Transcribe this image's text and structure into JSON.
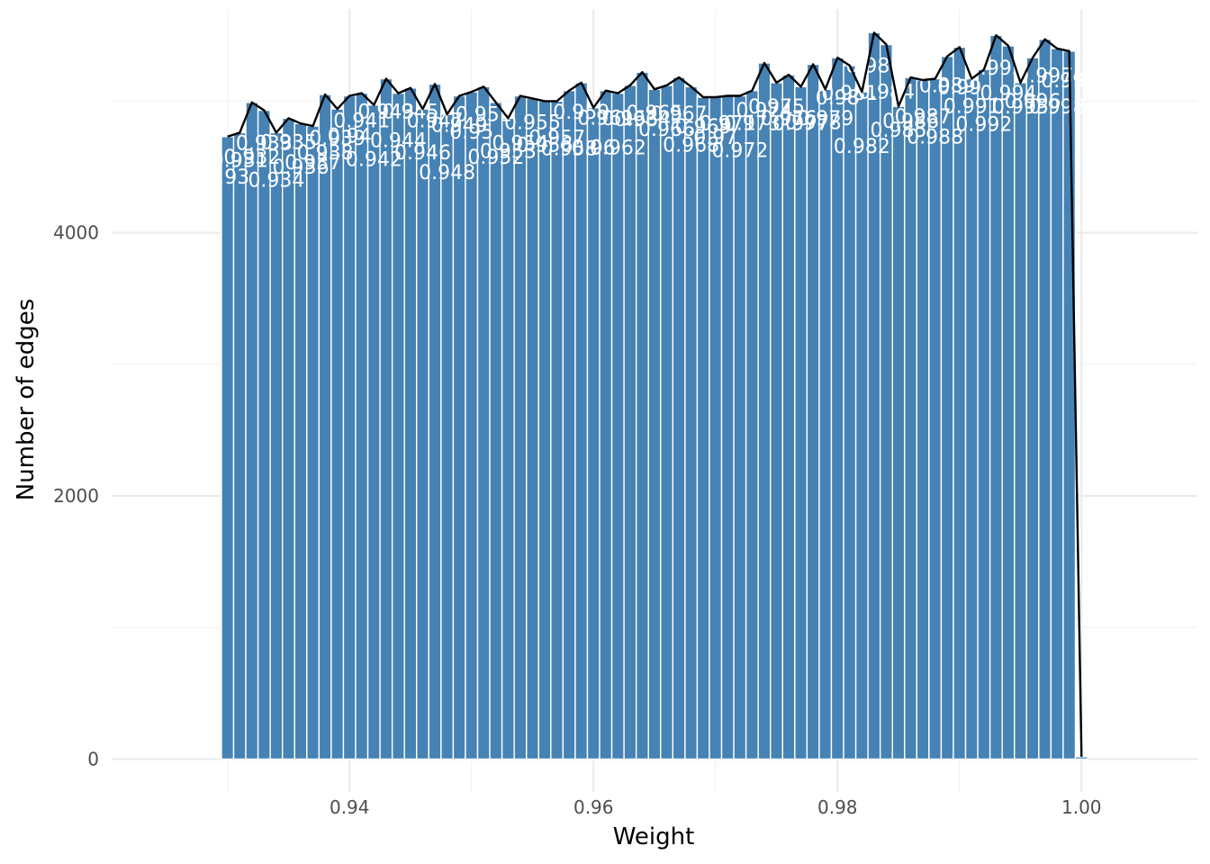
{
  "chart_data": {
    "type": "bar",
    "title": "",
    "xlabel": "Weight",
    "ylabel": "Number of edges",
    "xlim": [
      0.9205,
      1.0095
    ],
    "ylim": [
      -250,
      5700
    ],
    "x_ticks": [
      {
        "value": 0.94,
        "label": "0.94"
      },
      {
        "value": 0.96,
        "label": "0.96"
      },
      {
        "value": 0.98,
        "label": "0.98"
      },
      {
        "value": 1.0,
        "label": "1.00"
      }
    ],
    "y_ticks": [
      {
        "value": 0,
        "label": "0"
      },
      {
        "value": 2000,
        "label": "2000"
      },
      {
        "value": 4000,
        "label": "4000"
      }
    ],
    "grid": true,
    "bar_color": "#4682B4",
    "line_color": "#000000",
    "label_color": "#FFFFFF",
    "bins": [
      {
        "x": 0.93,
        "count": 4730,
        "label": "0.93"
      },
      {
        "x": 0.931,
        "count": 4760,
        "label": "0.931"
      },
      {
        "x": 0.932,
        "count": 4990,
        "label": "0.932"
      },
      {
        "x": 0.933,
        "count": 4930,
        "label": "0.933"
      },
      {
        "x": 0.934,
        "count": 4760,
        "label": "0.934"
      },
      {
        "x": 0.935,
        "count": 4870,
        "label": "0.935"
      },
      {
        "x": 0.936,
        "count": 4830,
        "label": "0.936"
      },
      {
        "x": 0.937,
        "count": 4810,
        "label": "0.937"
      },
      {
        "x": 0.938,
        "count": 5050,
        "label": "0.938"
      },
      {
        "x": 0.939,
        "count": 4940,
        "label": "0.939"
      },
      {
        "x": 0.94,
        "count": 5040,
        "label": "0.94"
      },
      {
        "x": 0.941,
        "count": 5060,
        "label": "0.941"
      },
      {
        "x": 0.942,
        "count": 4970,
        "label": "0.942"
      },
      {
        "x": 0.943,
        "count": 5170,
        "label": "0.943"
      },
      {
        "x": 0.944,
        "count": 5060,
        "label": "0.944"
      },
      {
        "x": 0.945,
        "count": 5100,
        "label": "0.945"
      },
      {
        "x": 0.946,
        "count": 4940,
        "label": "0.946"
      },
      {
        "x": 0.947,
        "count": 5130,
        "label": "0.947"
      },
      {
        "x": 0.948,
        "count": 4900,
        "label": "0.948"
      },
      {
        "x": 0.949,
        "count": 5040,
        "label": "0.949"
      },
      {
        "x": 0.95,
        "count": 5070,
        "label": "0.95"
      },
      {
        "x": 0.951,
        "count": 5110,
        "label": "0.951"
      },
      {
        "x": 0.952,
        "count": 4990,
        "label": "0.952"
      },
      {
        "x": 0.953,
        "count": 4870,
        "label": "0.953"
      },
      {
        "x": 0.954,
        "count": 5040,
        "label": "0.954"
      },
      {
        "x": 0.955,
        "count": 5020,
        "label": "0.955"
      },
      {
        "x": 0.956,
        "count": 5000,
        "label": "0.956"
      },
      {
        "x": 0.957,
        "count": 5000,
        "label": "0.957"
      },
      {
        "x": 0.958,
        "count": 5080,
        "label": "0.958"
      },
      {
        "x": 0.959,
        "count": 5140,
        "label": "0.959"
      },
      {
        "x": 0.96,
        "count": 4950,
        "label": "0.96"
      },
      {
        "x": 0.961,
        "count": 5080,
        "label": "0.961"
      },
      {
        "x": 0.962,
        "count": 5060,
        "label": "0.962"
      },
      {
        "x": 0.963,
        "count": 5120,
        "label": "0.963"
      },
      {
        "x": 0.964,
        "count": 5220,
        "label": "0.964"
      },
      {
        "x": 0.965,
        "count": 5090,
        "label": "0.965"
      },
      {
        "x": 0.966,
        "count": 5120,
        "label": "0.966"
      },
      {
        "x": 0.967,
        "count": 5180,
        "label": "0.967"
      },
      {
        "x": 0.968,
        "count": 5110,
        "label": "0.968"
      },
      {
        "x": 0.969,
        "count": 5030,
        "label": "0.969"
      },
      {
        "x": 0.97,
        "count": 5030,
        "label": "0.97"
      },
      {
        "x": 0.971,
        "count": 5040,
        "label": "0.971"
      },
      {
        "x": 0.972,
        "count": 5040,
        "label": "0.972"
      },
      {
        "x": 0.973,
        "count": 5080,
        "label": "0.973"
      },
      {
        "x": 0.974,
        "count": 5290,
        "label": "0.974"
      },
      {
        "x": 0.975,
        "count": 5140,
        "label": "0.975"
      },
      {
        "x": 0.976,
        "count": 5200,
        "label": "0.976"
      },
      {
        "x": 0.977,
        "count": 5110,
        "label": "0.977"
      },
      {
        "x": 0.978,
        "count": 5280,
        "label": "0.978"
      },
      {
        "x": 0.979,
        "count": 5090,
        "label": "0.979"
      },
      {
        "x": 0.98,
        "count": 5330,
        "label": "0.98"
      },
      {
        "x": 0.981,
        "count": 5270,
        "label": "0.981"
      },
      {
        "x": 0.982,
        "count": 5070,
        "label": "0.982"
      },
      {
        "x": 0.983,
        "count": 5520,
        "label": "0.983"
      },
      {
        "x": 0.984,
        "count": 5430,
        "label": "0.984"
      },
      {
        "x": 0.985,
        "count": 4960,
        "label": "0.985"
      },
      {
        "x": 0.986,
        "count": 5180,
        "label": "0.986"
      },
      {
        "x": 0.987,
        "count": 5160,
        "label": "0.987"
      },
      {
        "x": 0.988,
        "count": 5170,
        "label": "0.988"
      },
      {
        "x": 0.989,
        "count": 5340,
        "label": "0.989"
      },
      {
        "x": 0.99,
        "count": 5410,
        "label": "0.99"
      },
      {
        "x": 0.991,
        "count": 5170,
        "label": "0.991"
      },
      {
        "x": 0.992,
        "count": 5240,
        "label": "0.992"
      },
      {
        "x": 0.993,
        "count": 5500,
        "label": "0.993"
      },
      {
        "x": 0.994,
        "count": 5420,
        "label": "0.994"
      },
      {
        "x": 0.995,
        "count": 5140,
        "label": "0.995"
      },
      {
        "x": 0.996,
        "count": 5330,
        "label": "0.996"
      },
      {
        "x": 0.997,
        "count": 5470,
        "label": "0.997"
      },
      {
        "x": 0.998,
        "count": 5400,
        "label": "0.998"
      },
      {
        "x": 0.999,
        "count": 5380,
        "label": "0.999"
      },
      {
        "x": 1.0,
        "count": 18,
        "label": ""
      }
    ]
  }
}
